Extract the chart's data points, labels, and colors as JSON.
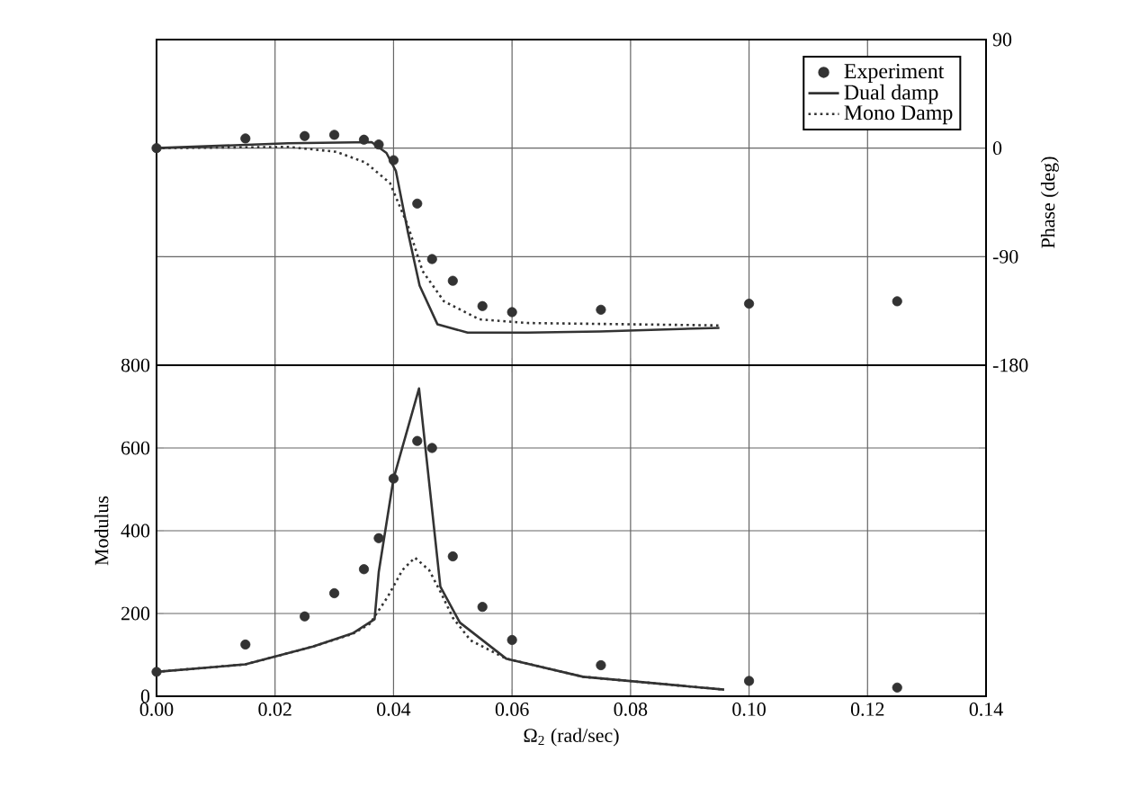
{
  "chart_data": [
    {
      "type": "line",
      "ylabel": "Phase  (deg)",
      "xlim": [
        0,
        0.14
      ],
      "ylim": [
        -180,
        90
      ],
      "xticks": [
        0,
        0.02,
        0.04,
        0.06,
        0.08,
        0.1,
        0.12,
        0.14
      ],
      "yticks": [
        90,
        0,
        -90,
        -180
      ],
      "tick_labels": "y",
      "grid": true,
      "legend": "top right",
      "series": [
        {
          "name": "Experiment",
          "type": "scatter",
          "color": "#333333",
          "x": [
            0,
            0.015,
            0.025,
            0.03,
            0.035,
            0.0375,
            0.04,
            0.044,
            0.0465,
            0.05,
            0.055,
            0.06,
            0.075,
            0.1,
            0.125
          ],
          "values": [
            0,
            8,
            10,
            11,
            7,
            3,
            -10,
            -46,
            -92,
            -110,
            -131,
            -136,
            -134,
            -129,
            -127
          ]
        },
        {
          "name": "Dual damp",
          "line_style": "solid",
          "color": "#333333",
          "x": [
            0,
            0.0222,
            0.0363,
            0.0388,
            0.0404,
            0.0424,
            0.0444,
            0.0474,
            0.0525,
            0.0626,
            0.0748,
            0.095
          ],
          "values": [
            0,
            4,
            5,
            -4,
            -19,
            -69,
            -114,
            -146,
            -153,
            -153,
            -152,
            -149
          ]
        },
        {
          "name": "Mono Damp",
          "line_style": "dotted",
          "color": "#333333",
          "x": [
            0,
            0.0222,
            0.0303,
            0.0353,
            0.0394,
            0.0424,
            0.0449,
            0.0485,
            0.0545,
            0.0626,
            0.095
          ],
          "values": [
            0,
            1,
            -3,
            -12,
            -29,
            -64,
            -102,
            -127,
            -142,
            -145,
            -147
          ]
        }
      ]
    },
    {
      "type": "line",
      "xlabel": "Ω$_{2}$  (rad/sec)",
      "ylabel": "Modulus",
      "xlim": [
        0,
        0.14
      ],
      "ylim": [
        0,
        800
      ],
      "xticks": [
        {
          "value": 0,
          "label": "0.00"
        },
        {
          "value": 0.02,
          "label": "0.02"
        },
        {
          "value": 0.04,
          "label": "0.04"
        },
        {
          "value": 0.06,
          "label": "0.06"
        },
        {
          "value": 0.08,
          "label": "0.08"
        },
        {
          "value": 0.1,
          "label": "0.10"
        },
        {
          "value": 0.12,
          "label": "0.12"
        },
        {
          "value": 0.14,
          "label": "0.14"
        }
      ],
      "yticks": [
        0,
        200,
        400,
        600,
        800
      ],
      "grid": true,
      "series": [
        {
          "type": "scatter",
          "color": "#333333",
          "x": [
            0,
            0.015,
            0.025,
            0.03,
            0.035,
            0.0375,
            0.04,
            0.044,
            0.0465,
            0.05,
            0.055,
            0.06,
            0.075,
            0.1,
            0.125
          ],
          "values": [
            59,
            125,
            193,
            249,
            307,
            382,
            526,
            617,
            600,
            338,
            216,
            136,
            75,
            37,
            21
          ]
        },
        {
          "line_style": "solid",
          "color": "#333333",
          "x": [
            0,
            0.015,
            0.0264,
            0.0331,
            0.0368,
            0.0375,
            0.04,
            0.0443,
            0.0479,
            0.0512,
            0.059,
            0.072,
            0.0958
          ],
          "values": [
            59,
            77,
            120,
            152,
            186,
            300,
            526,
            744,
            265,
            178,
            91,
            47,
            16
          ]
        },
        {
          "line_style": "dotted",
          "color": "#333333",
          "x": [
            0,
            0.015,
            0.0264,
            0.033,
            0.036,
            0.039,
            0.0415,
            0.0436,
            0.046,
            0.048,
            0.05,
            0.053,
            0.059,
            0.072,
            0.0958
          ],
          "values": [
            59,
            77,
            120,
            150,
            175,
            240,
            305,
            335,
            305,
            250,
            190,
            135,
            91,
            47,
            16
          ]
        }
      ]
    }
  ]
}
